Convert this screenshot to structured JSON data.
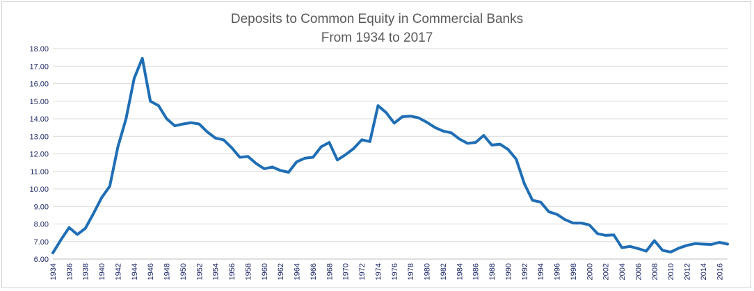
{
  "chart_data": {
    "type": "line",
    "title": "Deposits to Common Equity in Commercial Banks",
    "subtitle": "From 1934 to 2017",
    "xlabel": "",
    "ylabel": "",
    "xlim": [
      1934,
      2017
    ],
    "ylim": [
      6.0,
      18.0
    ],
    "y_ticks": [
      "6.00",
      "7.00",
      "8.00",
      "9.00",
      "10.00",
      "11.00",
      "12.00",
      "13.00",
      "14.00",
      "15.00",
      "16.00",
      "17.00",
      "18.00"
    ],
    "x_ticks": [
      "1934",
      "1936",
      "1938",
      "1940",
      "1942",
      "1944",
      "1946",
      "1948",
      "1950",
      "1952",
      "1954",
      "1956",
      "1958",
      "1960",
      "1962",
      "1964",
      "1966",
      "1968",
      "1970",
      "1972",
      "1974",
      "1976",
      "1978",
      "1980",
      "1982",
      "1984",
      "1986",
      "1988",
      "1990",
      "1992",
      "1994",
      "1996",
      "1998",
      "2000",
      "2002",
      "2004",
      "2006",
      "2008",
      "2010",
      "2012",
      "2014",
      "2016"
    ],
    "grid": true,
    "line_color": "#1f6eb5",
    "series": [
      {
        "x": [
          1934,
          1935,
          1936,
          1937,
          1938,
          1939,
          1940,
          1941,
          1942,
          1943,
          1944,
          1945,
          1946,
          1947,
          1948,
          1949,
          1950,
          1951,
          1952,
          1953,
          1954,
          1955,
          1956,
          1957,
          1958,
          1959,
          1960,
          1961,
          1962,
          1963,
          1964,
          1965,
          1966,
          1967,
          1968,
          1969,
          1970,
          1971,
          1972,
          1973,
          1974,
          1975,
          1976,
          1977,
          1978,
          1979,
          1980,
          1981,
          1982,
          1983,
          1984,
          1985,
          1986,
          1987,
          1988,
          1989,
          1990,
          1991,
          1992,
          1993,
          1994,
          1995,
          1996,
          1997,
          1998,
          1999,
          2000,
          2001,
          2002,
          2003,
          2004,
          2005,
          2006,
          2007,
          2008,
          2009,
          2010,
          2011,
          2012,
          2013,
          2014,
          2015,
          2016,
          2017
        ],
        "values": [
          6.35,
          7.1,
          7.8,
          7.4,
          7.75,
          8.6,
          9.5,
          10.15,
          12.4,
          14.0,
          16.3,
          17.45,
          15.0,
          14.75,
          14.0,
          13.6,
          13.7,
          13.78,
          13.7,
          13.25,
          12.9,
          12.8,
          12.35,
          11.8,
          11.85,
          11.45,
          11.15,
          11.25,
          11.05,
          10.95,
          11.55,
          11.75,
          11.8,
          12.4,
          12.65,
          11.65,
          11.95,
          12.3,
          12.8,
          12.7,
          14.75,
          14.35,
          13.75,
          14.12,
          14.15,
          14.05,
          13.8,
          13.5,
          13.3,
          13.2,
          12.85,
          12.6,
          12.65,
          13.05,
          12.5,
          12.55,
          12.25,
          11.7,
          10.3,
          9.35,
          9.25,
          8.7,
          8.55,
          8.25,
          8.05,
          8.05,
          7.95,
          7.45,
          7.35,
          7.38,
          6.65,
          6.72,
          6.6,
          6.45,
          7.05,
          6.5,
          6.4,
          6.62,
          6.78,
          6.88,
          6.85,
          6.83,
          6.95,
          6.85
        ]
      }
    ]
  }
}
